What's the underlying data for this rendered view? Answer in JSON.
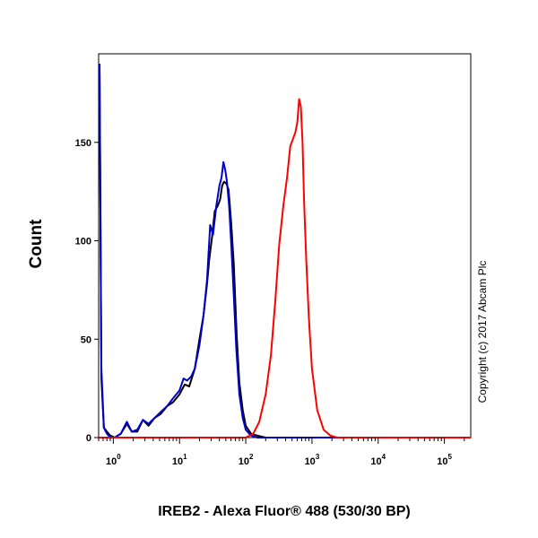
{
  "chart_data": {
    "type": "line",
    "xlabel": "IREB2 - Alexa Fluor® 488 (530/30 BP)",
    "ylabel": "Count",
    "x_scale": "log",
    "xlim": [
      0.6,
      250000
    ],
    "ylim": [
      0,
      195
    ],
    "y_ticks": [
      0,
      50,
      100,
      150
    ],
    "x_ticks": [
      {
        "value": 1,
        "base": "10",
        "exp": "0"
      },
      {
        "value": 10,
        "base": "10",
        "exp": "1"
      },
      {
        "value": 100,
        "base": "10",
        "exp": "2"
      },
      {
        "value": 1000,
        "base": "10",
        "exp": "3"
      },
      {
        "value": 10000,
        "base": "10",
        "exp": "4"
      },
      {
        "value": 100000,
        "base": "10",
        "exp": "5"
      }
    ],
    "grid": false,
    "legend": "none",
    "copyright": "Copyright (c) 2017 Abcam Plc",
    "series": [
      {
        "color": "#000000",
        "points": [
          [
            0.62,
            185
          ],
          [
            0.66,
            30
          ],
          [
            0.72,
            5
          ],
          [
            0.8,
            3
          ],
          [
            0.9,
            1
          ],
          [
            1.05,
            0
          ],
          [
            1.3,
            2
          ],
          [
            1.6,
            7
          ],
          [
            1.9,
            3
          ],
          [
            2.3,
            3
          ],
          [
            2.8,
            9
          ],
          [
            3.4,
            6
          ],
          [
            4.2,
            10
          ],
          [
            5.2,
            12
          ],
          [
            6.5,
            16
          ],
          [
            8,
            18
          ],
          [
            10,
            22
          ],
          [
            12,
            27
          ],
          [
            14,
            26
          ],
          [
            17,
            35
          ],
          [
            20,
            50
          ],
          [
            23,
            62
          ],
          [
            26,
            78
          ],
          [
            28,
            90
          ],
          [
            31,
            102
          ],
          [
            34,
            115
          ],
          [
            38,
            118
          ],
          [
            41,
            121
          ],
          [
            44,
            128
          ],
          [
            47,
            130
          ],
          [
            51,
            129
          ],
          [
            55,
            126
          ],
          [
            60,
            110
          ],
          [
            66,
            88
          ],
          [
            73,
            52
          ],
          [
            80,
            28
          ],
          [
            90,
            14
          ],
          [
            100,
            6
          ],
          [
            120,
            2
          ],
          [
            150,
            1
          ],
          [
            200,
            0
          ],
          [
            250000,
            0
          ]
        ]
      },
      {
        "color": "#0000cc",
        "points": [
          [
            0.62,
            190
          ],
          [
            0.66,
            35
          ],
          [
            0.72,
            5
          ],
          [
            0.8,
            2
          ],
          [
            0.9,
            0
          ],
          [
            1.05,
            0
          ],
          [
            1.3,
            2
          ],
          [
            1.6,
            8
          ],
          [
            1.9,
            3
          ],
          [
            2.3,
            4
          ],
          [
            2.8,
            9
          ],
          [
            3.4,
            7
          ],
          [
            4.2,
            10
          ],
          [
            5.2,
            13
          ],
          [
            6.5,
            16
          ],
          [
            8,
            20
          ],
          [
            10,
            24
          ],
          [
            11.5,
            30
          ],
          [
            13,
            29
          ],
          [
            15,
            31
          ],
          [
            17,
            35
          ],
          [
            20,
            47
          ],
          [
            23,
            62
          ],
          [
            26,
            80
          ],
          [
            29,
            108
          ],
          [
            32,
            103
          ],
          [
            36,
            118
          ],
          [
            40,
            128
          ],
          [
            43,
            132
          ],
          [
            46,
            140
          ],
          [
            49,
            136
          ],
          [
            52,
            130
          ],
          [
            56,
            118
          ],
          [
            60,
            100
          ],
          [
            66,
            72
          ],
          [
            72,
            45
          ],
          [
            80,
            22
          ],
          [
            90,
            10
          ],
          [
            100,
            4
          ],
          [
            120,
            1
          ],
          [
            150,
            0
          ],
          [
            250000,
            0
          ]
        ]
      },
      {
        "color": "#ff0000",
        "points": [
          [
            0.6,
            0
          ],
          [
            100,
            0
          ],
          [
            130,
            2
          ],
          [
            160,
            8
          ],
          [
            200,
            22
          ],
          [
            240,
            42
          ],
          [
            280,
            70
          ],
          [
            320,
            98
          ],
          [
            370,
            118
          ],
          [
            420,
            132
          ],
          [
            470,
            148
          ],
          [
            520,
            152
          ],
          [
            560,
            155
          ],
          [
            600,
            160
          ],
          [
            640,
            172
          ],
          [
            680,
            168
          ],
          [
            720,
            150
          ],
          [
            760,
            120
          ],
          [
            820,
            90
          ],
          [
            900,
            60
          ],
          [
            1000,
            35
          ],
          [
            1200,
            14
          ],
          [
            1500,
            4
          ],
          [
            1900,
            1
          ],
          [
            2400,
            0
          ],
          [
            250000,
            0
          ]
        ]
      }
    ]
  }
}
